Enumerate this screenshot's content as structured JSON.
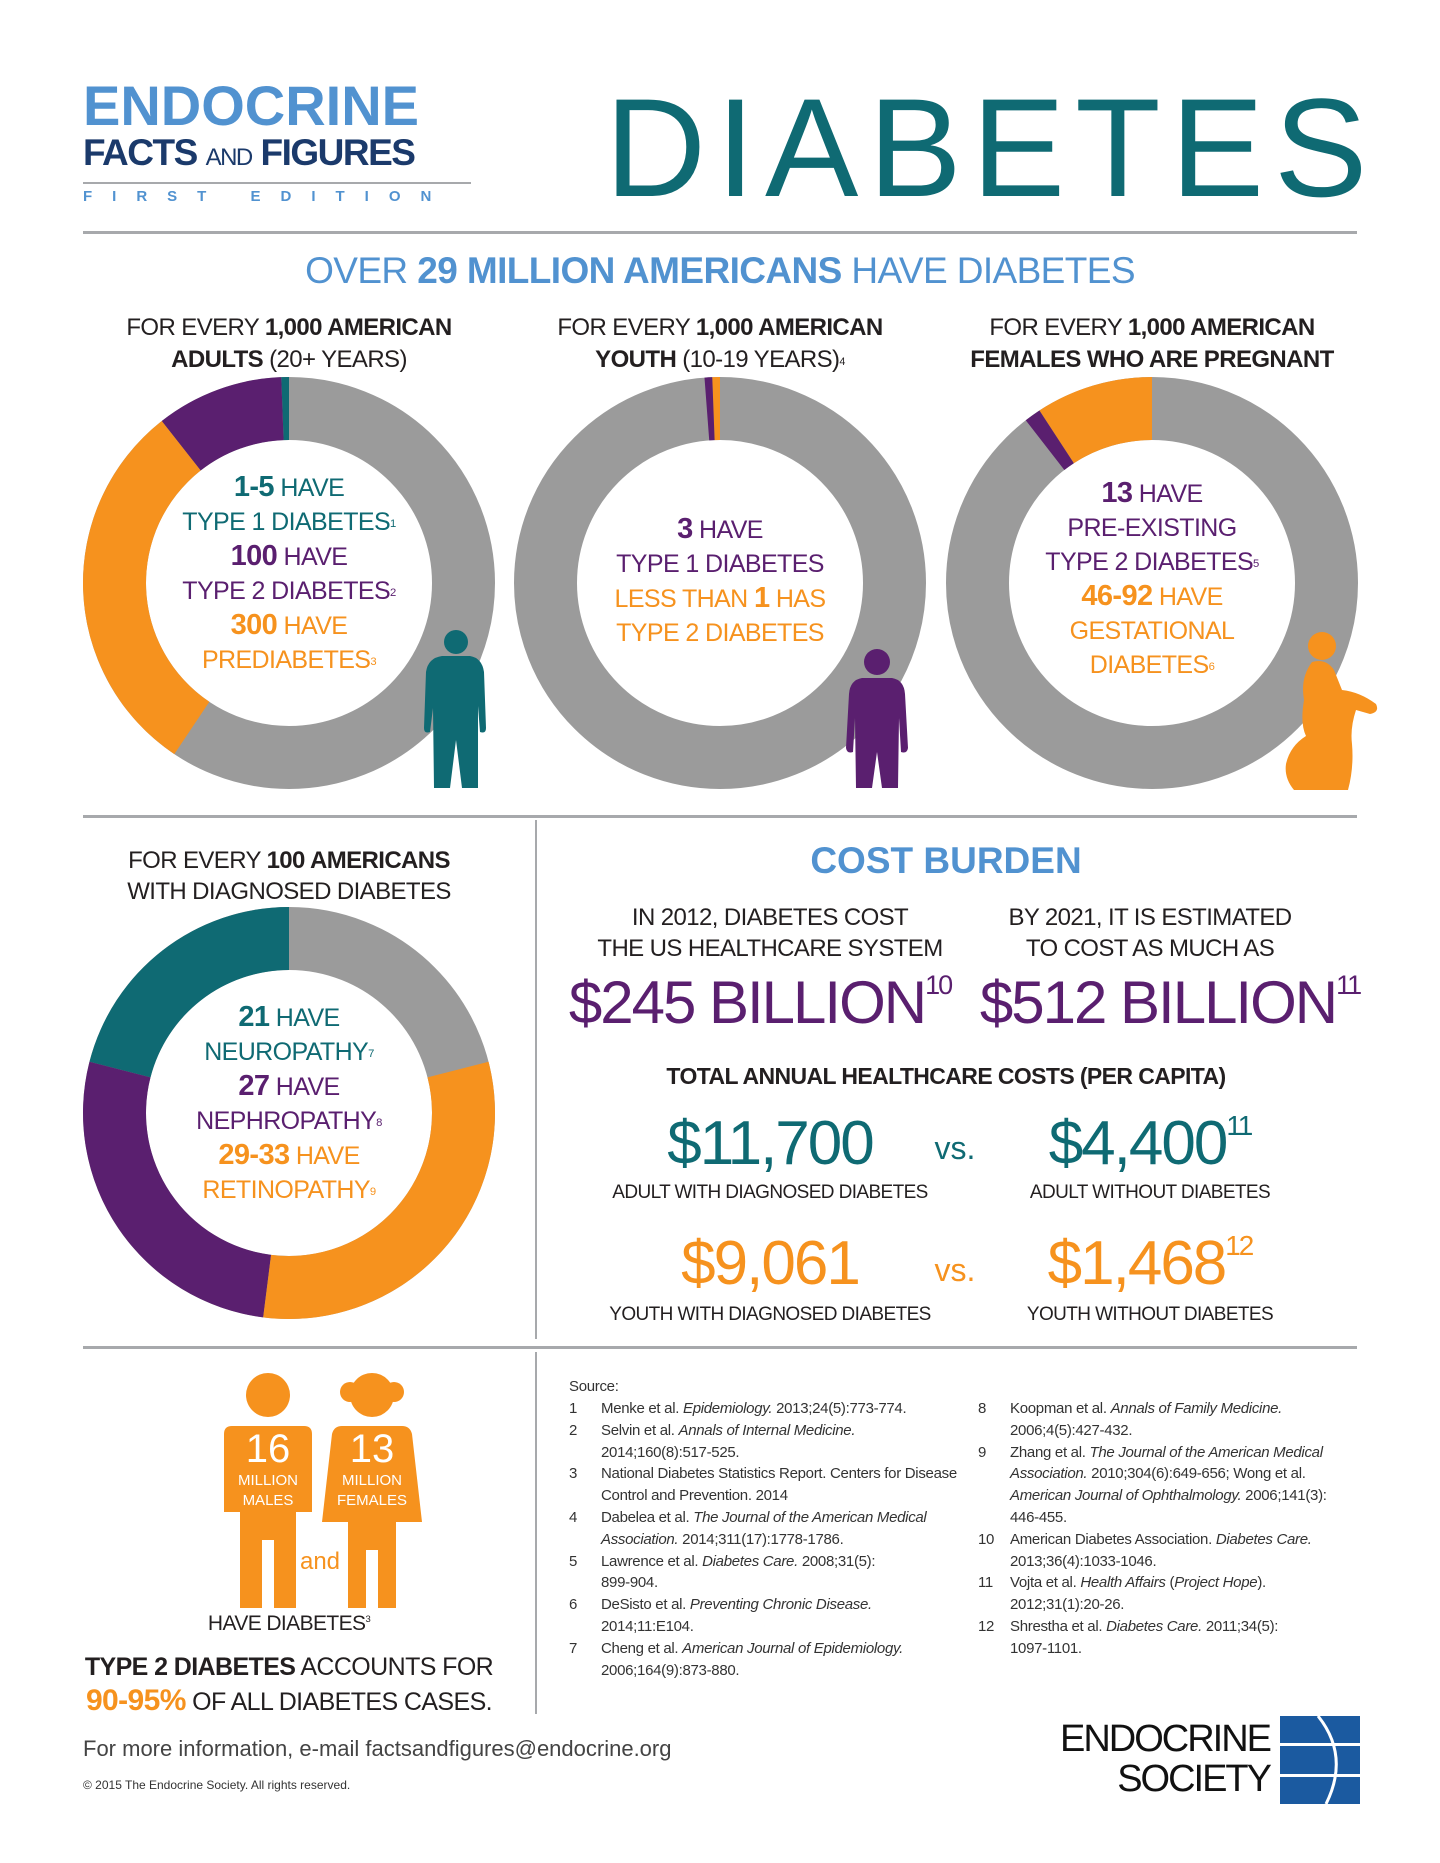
{
  "header": {
    "series_logo": {
      "line1": "ENDOCRINE",
      "line2a": "FACTS ",
      "line2b": "AND",
      "line2c": " FIGURES",
      "line3": "FIRST EDITION"
    },
    "title": "DIABETES"
  },
  "headline": {
    "pre": "OVER ",
    "bold": "29 MILLION AMERICANS",
    "post": " HAVE DIABETES"
  },
  "colors": {
    "teal": "#0f6a73",
    "purple": "#5a1f6f",
    "orange": "#f6921e",
    "gray": "#9b9b9b",
    "blue": "#5192d0",
    "navy": "#1b3a6b"
  },
  "donuts": [
    {
      "title_pre": "FOR EVERY ",
      "title_bold": "1,000 AMERICAN",
      "title2_bold": "ADULTS",
      "title2_post": " (20+ YEARS)",
      "title2_sup": "",
      "lines": [
        {
          "big": "1-5",
          "text": " HAVE",
          "color": "teal"
        },
        {
          "text": "TYPE 1 DIABETES",
          "sup": "1",
          "color": "teal"
        },
        {
          "big": "100",
          "text": " HAVE",
          "color": "purple"
        },
        {
          "text": "TYPE 2 DIABETES",
          "sup": "2",
          "color": "purple"
        },
        {
          "big": "300",
          "text": " HAVE",
          "color": "orange"
        },
        {
          "text": "PREDIABETES",
          "sup": "3",
          "color": "orange"
        }
      ],
      "icon": "man-silhouette-icon"
    },
    {
      "title_pre": "FOR EVERY ",
      "title_bold": "1,000 AMERICAN",
      "title2_bold": "YOUTH",
      "title2_post": " (10-19 YEARS)",
      "title2_sup": "4",
      "lines": [
        {
          "big": "3",
          "text": " HAVE",
          "color": "purple"
        },
        {
          "text": "TYPE 1 DIABETES",
          "color": "purple"
        },
        {
          "text": "LESS THAN ",
          "big2": "1",
          "text2": " HAS",
          "color": "orange"
        },
        {
          "text": "TYPE 2 DIABETES",
          "color": "orange"
        }
      ],
      "icon": "child-silhouette-icon"
    },
    {
      "title_pre": "FOR EVERY ",
      "title_bold": "1,000 AMERICAN",
      "title2_bold": "FEMALES WHO ARE PREGNANT",
      "title2_post": "",
      "title2_sup": "",
      "lines": [
        {
          "big": "13",
          "text": " HAVE",
          "color": "purple"
        },
        {
          "text": "PRE-EXISTING",
          "color": "purple"
        },
        {
          "text": "TYPE 2 DIABETES",
          "sup": "5",
          "color": "purple"
        },
        {
          "big": "46-92",
          "text": " HAVE",
          "color": "orange"
        },
        {
          "text": "GESTATIONAL",
          "color": "orange"
        },
        {
          "text": "DIABETES",
          "sup": "6",
          "color": "orange"
        }
      ],
      "icon": "pregnant-woman-silhouette-icon"
    }
  ],
  "complications": {
    "title_pre": "FOR EVERY ",
    "title_bold": "100 AMERICANS",
    "title2": "WITH DIAGNOSED DIABETES",
    "lines": [
      {
        "big": "21",
        "text": " HAVE",
        "color": "teal"
      },
      {
        "text": "NEUROPATHY",
        "sup": "7",
        "color": "teal"
      },
      {
        "big": "27",
        "text": " HAVE",
        "color": "purple"
      },
      {
        "text": "NEPHROPATHY",
        "sup": "8",
        "color": "purple"
      },
      {
        "big": "29-33",
        "text": " HAVE",
        "color": "orange"
      },
      {
        "text": "RETINOPATHY",
        "sup": "9",
        "color": "orange"
      }
    ]
  },
  "chart_data": [
    {
      "type": "pie",
      "subtype": "donut",
      "of_total": 1000,
      "slices": [
        {
          "label": "Prediabetes",
          "value": 300,
          "color": "orange"
        },
        {
          "label": "Type 2 diabetes",
          "value": 100,
          "color": "purple"
        },
        {
          "label": "Type 1 diabetes",
          "value": 3,
          "color": "teal"
        }
      ],
      "remainder_color": "gray"
    },
    {
      "type": "pie",
      "subtype": "donut",
      "of_total": 1000,
      "slices": [
        {
          "label": "Type 1 diabetes",
          "value": 3,
          "color": "purple"
        },
        {
          "label": "Type 2 diabetes",
          "value": 1,
          "color": "orange"
        }
      ],
      "remainder_color": "gray",
      "order": "counterclockwise"
    },
    {
      "type": "pie",
      "subtype": "donut",
      "of_total": 1000,
      "slices": [
        {
          "label": "Pre-existing type 2 diabetes",
          "value": 13,
          "color": "purple"
        },
        {
          "label": "Gestational diabetes",
          "value": 92,
          "color": "orange"
        }
      ],
      "remainder_color": "gray",
      "order": "counterclockwise"
    },
    {
      "type": "pie",
      "subtype": "donut",
      "of_total": 100,
      "slices": [
        {
          "label": "Retinopathy",
          "value": 31,
          "color": "orange"
        },
        {
          "label": "Nephropathy",
          "value": 27,
          "color": "purple"
        },
        {
          "label": "Neuropathy",
          "value": 21,
          "color": "teal"
        }
      ],
      "remainder_color": "gray"
    }
  ],
  "cost": {
    "title": "COST BURDEN",
    "left_text1": "IN 2012, DIABETES COST",
    "left_text2": "THE US HEALTHCARE SYSTEM",
    "left_amount": "$245 BILLION",
    "left_sup": "10",
    "right_text1": "BY 2021, IT IS ESTIMATED",
    "right_text2": "TO COST AS MUCH AS",
    "right_amount": "$512 BILLION",
    "right_sup": "11",
    "per_capita_title": "TOTAL ANNUAL HEALTHCARE COSTS (PER CAPITA)",
    "vs": "vs.",
    "adult_with": "$11,700",
    "adult_with_label": "ADULT WITH DIAGNOSED DIABETES",
    "adult_without": "$4,400",
    "adult_without_sup": "11",
    "adult_without_label": "ADULT WITHOUT DIABETES",
    "youth_with": "$9,061",
    "youth_with_label": "YOUTH WITH DIAGNOSED DIABETES",
    "youth_without": "$1,468",
    "youth_without_sup": "12",
    "youth_without_label": "YOUTH WITHOUT DIABETES"
  },
  "gender": {
    "males_num": "16",
    "males_label1": "MILLION",
    "males_label2": "MALES",
    "females_num": "13",
    "females_label1": "MILLION",
    "females_label2": "FEMALES",
    "and": "and",
    "have": "HAVE DIABETES",
    "have_sup": "3",
    "t2_bold": "TYPE 2 DIABETES",
    "t2_post": " ACCOUNTS FOR",
    "pct": "90-95%",
    "pct_post": " OF ALL DIABETES CASES."
  },
  "sources": {
    "label": "Source:",
    "col1": [
      {
        "n": "1",
        "lines": [
          [
            "Menke et al. ",
            "Epidemiology.",
            " 2013;24(5):773-774."
          ]
        ]
      },
      {
        "n": "2",
        "lines": [
          [
            "Selvin et al. ",
            "Annals of Internal Medicine.",
            ""
          ],
          [
            "2014;160(8):517-525.",
            "",
            ""
          ]
        ]
      },
      {
        "n": "3",
        "lines": [
          [
            "National Diabetes Statistics Report. Centers for Disease",
            "",
            ""
          ],
          [
            "Control and Prevention. 2014",
            "",
            ""
          ]
        ]
      },
      {
        "n": "4",
        "lines": [
          [
            "Dabelea et al. ",
            "The Journal of the American Medical",
            ""
          ],
          [
            "",
            "Association.",
            " 2014;311(17):1778-1786."
          ]
        ]
      },
      {
        "n": "5",
        "lines": [
          [
            "Lawrence et al. ",
            "Diabetes Care.",
            " 2008;31(5):"
          ],
          [
            "899-904.",
            "",
            ""
          ]
        ]
      },
      {
        "n": "6",
        "lines": [
          [
            "DeSisto et al. ",
            "Preventing Chronic Disease.",
            ""
          ],
          [
            "2014;11:E104.",
            "",
            ""
          ]
        ]
      },
      {
        "n": "7",
        "lines": [
          [
            "Cheng et al. ",
            "American Journal of Epidemiology.",
            ""
          ],
          [
            "2006;164(9):873-880.",
            "",
            ""
          ]
        ]
      }
    ],
    "col2": [
      {
        "n": "8",
        "lines": [
          [
            "Koopman et al. ",
            "Annals of Family Medicine.",
            ""
          ],
          [
            "2006;4(5):427-432.",
            "",
            ""
          ]
        ]
      },
      {
        "n": "9",
        "lines": [
          [
            "Zhang et al. ",
            "The Journal of the American Medical",
            ""
          ],
          [
            "",
            "Association.",
            " 2010;304(6):649-656; Wong et al."
          ],
          [
            "",
            "American Journal of Ophthalmology.",
            " 2006;141(3):"
          ],
          [
            "446-455.",
            "",
            ""
          ]
        ]
      },
      {
        "n": "10",
        "lines": [
          [
            "American Diabetes Association. ",
            "Diabetes Care.",
            ""
          ],
          [
            "2013;36(4):1033-1046.",
            "",
            ""
          ]
        ]
      },
      {
        "n": "11",
        "lines": [
          [
            "Vojta et al. ",
            "Health Affairs",
            " ("
          ],
          [
            "",
            "",
            ""
          ]
        ],
        "extra": true
      },
      {
        "n": "12",
        "lines": [
          [
            "Shrestha et al. ",
            "Diabetes Care.",
            " 2011;34(5):"
          ],
          [
            "1097-1101.",
            "",
            ""
          ]
        ]
      }
    ],
    "ref11_line1_pre": "Vojta et al. ",
    "ref11_journal": "Health Affairs",
    "ref11_paren_open": " (",
    "ref11_paren_italic": "Project Hope",
    "ref11_paren_close": ").",
    "ref11_line2": "2012;31(1):20-26."
  },
  "footer": {
    "contact": "For more information, e-mail factsandfigures@endocrine.org",
    "copyright": "© 2015 The Endocrine Society. All rights reserved.",
    "logo_line1": "ENDOCRINE",
    "logo_line2": "SOCIETY"
  }
}
